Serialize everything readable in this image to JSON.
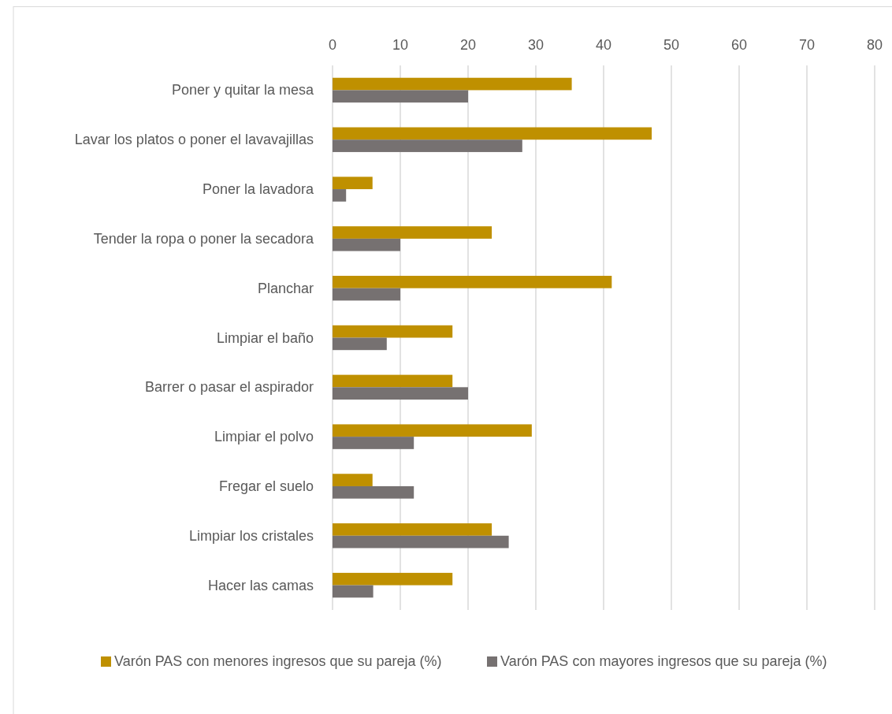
{
  "chart_data": {
    "type": "bar",
    "orientation": "horizontal",
    "categories": [
      "Poner y quitar la mesa",
      "Lavar los platos o poner el lavavajillas",
      "Poner la lavadora",
      "Tender la ropa o poner la secadora",
      "Planchar",
      "Limpiar el baño",
      "Barrer o pasar el aspirador",
      "Limpiar el polvo",
      "Fregar el suelo",
      "Limpiar los cristales",
      "Hacer las camas"
    ],
    "series": [
      {
        "name": "Varón PAS con menores ingresos que su pareja (%)",
        "color": "#bf9000",
        "values": [
          35.3,
          47.1,
          5.9,
          23.5,
          41.2,
          17.7,
          17.7,
          29.4,
          5.9,
          23.5,
          17.7
        ]
      },
      {
        "name": "Varón PAS con mayores ingresos que su pareja (%)",
        "color": "#767171",
        "values": [
          20,
          28,
          2,
          10,
          10,
          8,
          20,
          12,
          12,
          26,
          6
        ]
      }
    ],
    "xlim": [
      0,
      80
    ],
    "xticks": [
      0,
      10,
      20,
      30,
      40,
      50,
      60,
      70,
      80
    ],
    "grid": "x",
    "legend": "bottom"
  }
}
